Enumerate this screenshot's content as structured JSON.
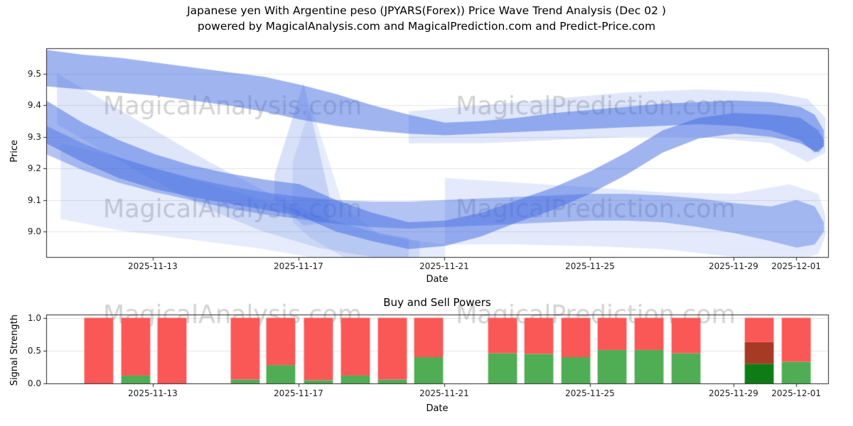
{
  "title": {
    "line1": "Japanese yen With Argentine peso (JPYARS(Forex)) Price Wave Trend Analysis (Dec 02 )",
    "line2": "powered by MagicalAnalysis.com and MagicalPrediction.com and Predict-Price.com"
  },
  "watermarks": [
    "MagicalAnalysis.com",
    "MagicalPrediction.com"
  ],
  "colors": {
    "band_rgb": "65,105,225",
    "sell": "#fa5757",
    "buy": "#4fad53",
    "sell_dark": "#a63a25",
    "buy_dark": "#0e7c14",
    "grid": "#e5e5e5",
    "spine": "#262626",
    "watermark": "rgba(110,110,110,0.30)"
  },
  "chart_data": [
    {
      "type": "area",
      "title": "",
      "xlabel": "Date",
      "ylabel": "Price",
      "xlim": [
        0,
        21.57
      ],
      "ylim": [
        8.92,
        9.58
      ],
      "x_ticks": [
        {
          "day": 2.94,
          "label": "2025-11-13"
        },
        {
          "day": 6.96,
          "label": "2025-11-17"
        },
        {
          "day": 10.98,
          "label": "2025-11-21"
        },
        {
          "day": 15.0,
          "label": "2025-11-25"
        },
        {
          "day": 18.96,
          "label": "2025-11-29"
        },
        {
          "day": 20.69,
          "label": "2025-12-01"
        }
      ],
      "y_ticks": [
        {
          "v": 9.0,
          "label": "9.0"
        },
        {
          "v": 9.1,
          "label": "9.1"
        },
        {
          "v": 9.2,
          "label": "9.2"
        },
        {
          "v": 9.3,
          "label": "9.3"
        },
        {
          "v": 9.4,
          "label": "9.4"
        },
        {
          "v": 9.5,
          "label": "9.5"
        }
      ],
      "bands": [
        {
          "name": "top-main",
          "alpha": 0.5,
          "x": [
            0,
            1,
            2,
            3,
            4,
            5,
            6,
            7,
            8,
            9,
            10,
            11,
            12,
            13,
            14,
            15,
            16,
            17,
            18,
            19,
            20,
            20.8,
            21.2,
            21.45
          ],
          "hi": [
            9.575,
            9.56,
            9.55,
            9.535,
            9.52,
            9.505,
            9.49,
            9.465,
            9.435,
            9.4,
            9.37,
            9.345,
            9.35,
            9.36,
            9.375,
            9.385,
            9.395,
            9.405,
            9.41,
            9.415,
            9.41,
            9.395,
            9.37,
            9.32
          ],
          "lo": [
            9.46,
            9.45,
            9.44,
            9.43,
            9.415,
            9.4,
            9.38,
            9.355,
            9.335,
            9.32,
            9.31,
            9.305,
            9.31,
            9.315,
            9.32,
            9.325,
            9.33,
            9.335,
            9.34,
            9.335,
            9.32,
            9.29,
            9.25,
            9.27
          ]
        },
        {
          "name": "top-halo-right",
          "alpha": 0.16,
          "x": [
            10,
            12,
            14,
            16,
            18,
            20,
            21,
            21.5
          ],
          "hi": [
            9.38,
            9.4,
            9.42,
            9.44,
            9.45,
            9.44,
            9.42,
            9.36
          ],
          "lo": [
            9.28,
            9.28,
            9.29,
            9.3,
            9.3,
            9.28,
            9.22,
            9.25
          ]
        },
        {
          "name": "left-diagonal-light",
          "alpha": 0.17,
          "x": [
            0.3,
            1.5,
            3,
            4.5,
            6,
            7.5,
            9,
            10
          ],
          "hi": [
            9.5,
            9.42,
            9.32,
            9.22,
            9.13,
            9.05,
            9.0,
            8.98
          ],
          "lo": [
            9.34,
            9.26,
            9.16,
            9.07,
            9.0,
            8.95,
            8.92,
            8.92
          ]
        },
        {
          "name": "mid-main",
          "alpha": 0.5,
          "x": [
            0,
            1,
            2,
            3,
            4,
            5,
            6,
            7,
            8,
            9,
            10,
            11,
            12,
            13,
            14,
            15,
            16,
            17,
            18,
            19,
            20,
            20.8,
            21.3,
            21.45
          ],
          "hi": [
            9.415,
            9.345,
            9.29,
            9.245,
            9.21,
            9.185,
            9.165,
            9.15,
            9.1,
            9.06,
            9.03,
            9.035,
            9.06,
            9.1,
            9.14,
            9.19,
            9.25,
            9.32,
            9.36,
            9.375,
            9.37,
            9.36,
            9.32,
            9.29
          ],
          "lo": [
            9.28,
            9.22,
            9.17,
            9.135,
            9.11,
            9.09,
            9.07,
            9.05,
            9.0,
            8.97,
            8.945,
            8.955,
            8.985,
            9.03,
            9.07,
            9.12,
            9.18,
            9.25,
            9.295,
            9.31,
            9.3,
            9.28,
            9.25,
            9.27
          ]
        },
        {
          "name": "spike",
          "alpha": 0.2,
          "x": [
            6.3,
            7.1,
            7.8
          ],
          "hi": [
            9.18,
            9.47,
            9.12
          ],
          "lo": [
            9.1,
            9.02,
            9.03
          ]
        },
        {
          "name": "lower-main",
          "alpha": 0.4,
          "x": [
            0,
            1,
            2,
            3,
            4,
            5,
            6,
            7,
            8,
            9,
            10,
            11,
            12,
            13,
            14,
            15,
            16,
            17,
            18,
            19,
            20,
            20.7,
            21.2,
            21.45
          ],
          "hi": [
            9.335,
            9.28,
            9.235,
            9.2,
            9.17,
            9.145,
            9.125,
            9.11,
            9.1,
            9.095,
            9.095,
            9.1,
            9.105,
            9.11,
            9.115,
            9.12,
            9.12,
            9.115,
            9.105,
            9.09,
            9.08,
            9.1,
            9.08,
            9.03
          ],
          "lo": [
            9.245,
            9.195,
            9.155,
            9.125,
            9.1,
            9.075,
            9.055,
            9.04,
            9.025,
            9.015,
            9.01,
            9.015,
            9.02,
            9.025,
            9.03,
            9.035,
            9.035,
            9.03,
            9.015,
            8.995,
            8.97,
            8.95,
            8.96,
            9.0
          ]
        },
        {
          "name": "right-wide-light",
          "alpha": 0.14,
          "x": [
            11,
            13,
            15,
            17,
            19,
            20.5,
            21.3,
            21.5
          ],
          "hi": [
            9.17,
            9.155,
            9.14,
            9.125,
            9.12,
            9.15,
            9.12,
            9.05
          ],
          "lo": [
            8.96,
            8.96,
            8.955,
            8.945,
            8.92,
            8.9,
            8.93,
            8.99
          ]
        },
        {
          "name": "left-wide-light",
          "alpha": 0.13,
          "x": [
            0.4,
            2,
            4,
            6,
            8,
            9,
            10,
            11
          ],
          "hi": [
            9.28,
            9.235,
            9.165,
            9.1,
            9.03,
            9.0,
            8.975,
            8.96
          ],
          "lo": [
            9.04,
            9.005,
            8.975,
            8.945,
            8.905,
            8.895,
            8.89,
            8.91
          ]
        },
        {
          "name": "mid-light-triangle",
          "alpha": 0.13,
          "x": [
            6.8,
            7.3,
            8.2,
            9.2,
            10.3
          ],
          "hi": [
            9.22,
            9.4,
            9.08,
            8.99,
            8.97
          ],
          "lo": [
            9.03,
            8.98,
            8.92,
            8.89,
            8.92
          ]
        }
      ]
    },
    {
      "type": "bar",
      "title": "Buy and Sell Powers",
      "xlabel": "Date",
      "ylabel": "Signal Strength",
      "xlim": [
        0,
        21.57
      ],
      "ylim": [
        0,
        1.05
      ],
      "bar_width": 0.8,
      "x_ticks": [
        {
          "day": 2.94,
          "label": "2025-11-13"
        },
        {
          "day": 6.96,
          "label": "2025-11-17"
        },
        {
          "day": 10.98,
          "label": "2025-11-21"
        },
        {
          "day": 15.0,
          "label": "2025-11-25"
        },
        {
          "day": 18.96,
          "label": "2025-11-29"
        },
        {
          "day": 20.69,
          "label": "2025-12-01"
        }
      ],
      "y_ticks": [
        {
          "v": 0.0,
          "label": "0.0"
        },
        {
          "v": 0.5,
          "label": "0.5"
        },
        {
          "v": 1.0,
          "label": "1.0"
        }
      ],
      "bars": [
        {
          "day": 1.45,
          "segments": [
            {
              "y0": 0,
              "y1": 1,
              "c": "sell"
            }
          ]
        },
        {
          "day": 2.47,
          "segments": [
            {
              "y0": 0,
              "y1": 0.12,
              "c": "buy"
            },
            {
              "y0": 0.12,
              "y1": 1,
              "c": "sell"
            }
          ]
        },
        {
          "day": 3.47,
          "segments": [
            {
              "y0": 0,
              "y1": 1,
              "c": "sell"
            }
          ]
        },
        {
          "day": 5.49,
          "segments": [
            {
              "y0": 0,
              "y1": 0.06,
              "c": "buy"
            },
            {
              "y0": 0.06,
              "y1": 1,
              "c": "sell"
            }
          ]
        },
        {
          "day": 6.47,
          "segments": [
            {
              "y0": 0,
              "y1": 0.28,
              "c": "buy"
            },
            {
              "y0": 0.28,
              "y1": 1,
              "c": "sell"
            }
          ]
        },
        {
          "day": 7.51,
          "segments": [
            {
              "y0": 0,
              "y1": 0.05,
              "c": "buy"
            },
            {
              "y0": 0.05,
              "y1": 1,
              "c": "sell"
            }
          ]
        },
        {
          "day": 8.53,
          "segments": [
            {
              "y0": 0,
              "y1": 0.12,
              "c": "buy"
            },
            {
              "y0": 0.12,
              "y1": 1,
              "c": "sell"
            }
          ]
        },
        {
          "day": 9.55,
          "segments": [
            {
              "y0": 0,
              "y1": 0.06,
              "c": "buy"
            },
            {
              "y0": 0.06,
              "y1": 1,
              "c": "sell"
            }
          ]
        },
        {
          "day": 10.55,
          "segments": [
            {
              "y0": 0,
              "y1": 0.4,
              "c": "buy"
            },
            {
              "y0": 0.4,
              "y1": 1,
              "c": "sell"
            }
          ]
        },
        {
          "day": 12.59,
          "segments": [
            {
              "y0": 0,
              "y1": 0.46,
              "c": "buy"
            },
            {
              "y0": 0.46,
              "y1": 1,
              "c": "sell"
            }
          ]
        },
        {
          "day": 13.59,
          "segments": [
            {
              "y0": 0,
              "y1": 0.45,
              "c": "buy"
            },
            {
              "y0": 0.45,
              "y1": 1,
              "c": "sell"
            }
          ]
        },
        {
          "day": 14.61,
          "segments": [
            {
              "y0": 0,
              "y1": 0.4,
              "c": "buy"
            },
            {
              "y0": 0.4,
              "y1": 1,
              "c": "sell"
            }
          ]
        },
        {
          "day": 15.61,
          "segments": [
            {
              "y0": 0,
              "y1": 0.51,
              "c": "buy"
            },
            {
              "y0": 0.51,
              "y1": 1,
              "c": "sell"
            }
          ]
        },
        {
          "day": 16.63,
          "segments": [
            {
              "y0": 0,
              "y1": 0.51,
              "c": "buy"
            },
            {
              "y0": 0.51,
              "y1": 1,
              "c": "sell"
            }
          ]
        },
        {
          "day": 17.65,
          "segments": [
            {
              "y0": 0,
              "y1": 0.46,
              "c": "buy"
            },
            {
              "y0": 0.46,
              "y1": 1,
              "c": "sell"
            }
          ]
        },
        {
          "day": 19.67,
          "segments": [
            {
              "y0": 0,
              "y1": 0.3,
              "c": "buy_dark"
            },
            {
              "y0": 0.3,
              "y1": 0.63,
              "c": "sell_dark"
            },
            {
              "y0": 0.63,
              "y1": 1,
              "c": "sell"
            }
          ]
        },
        {
          "day": 20.69,
          "segments": [
            {
              "y0": 0,
              "y1": 0.33,
              "c": "buy"
            },
            {
              "y0": 0.33,
              "y1": 1,
              "c": "sell"
            }
          ]
        }
      ]
    }
  ]
}
